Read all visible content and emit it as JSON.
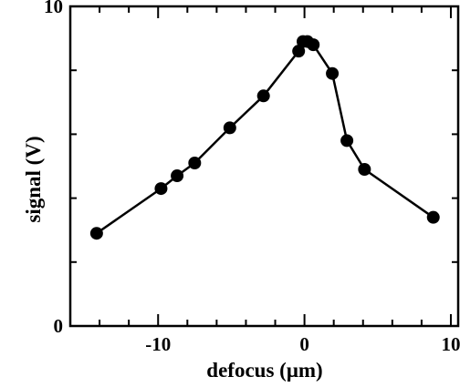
{
  "chart_data": {
    "type": "line",
    "title": "",
    "xlabel": "defocus (μm)",
    "ylabel": "signal (V)",
    "xlim": [
      -16,
      10.5
    ],
    "ylim": [
      0,
      10
    ],
    "x_ticks": [
      -10,
      0,
      10
    ],
    "x_tick_labels": [
      "-10",
      "0",
      "10"
    ],
    "y_ticks": [
      0,
      10
    ],
    "y_tick_labels": [
      "0",
      "10"
    ],
    "grid": false,
    "legend": "none",
    "series": [
      {
        "x": [
          -14.2,
          -9.8,
          -8.7,
          -7.5,
          -5.1,
          -2.8,
          -0.4,
          -0.1,
          0.2,
          0.6,
          1.9,
          2.9,
          4.1,
          8.8
        ],
        "y": [
          2.9,
          4.3,
          4.7,
          5.1,
          6.2,
          7.2,
          8.6,
          8.9,
          8.9,
          8.8,
          7.9,
          5.8,
          4.9,
          3.4
        ]
      }
    ],
    "colors": {
      "line": "#000000",
      "marker": "#000000",
      "axes": "#000000"
    }
  }
}
